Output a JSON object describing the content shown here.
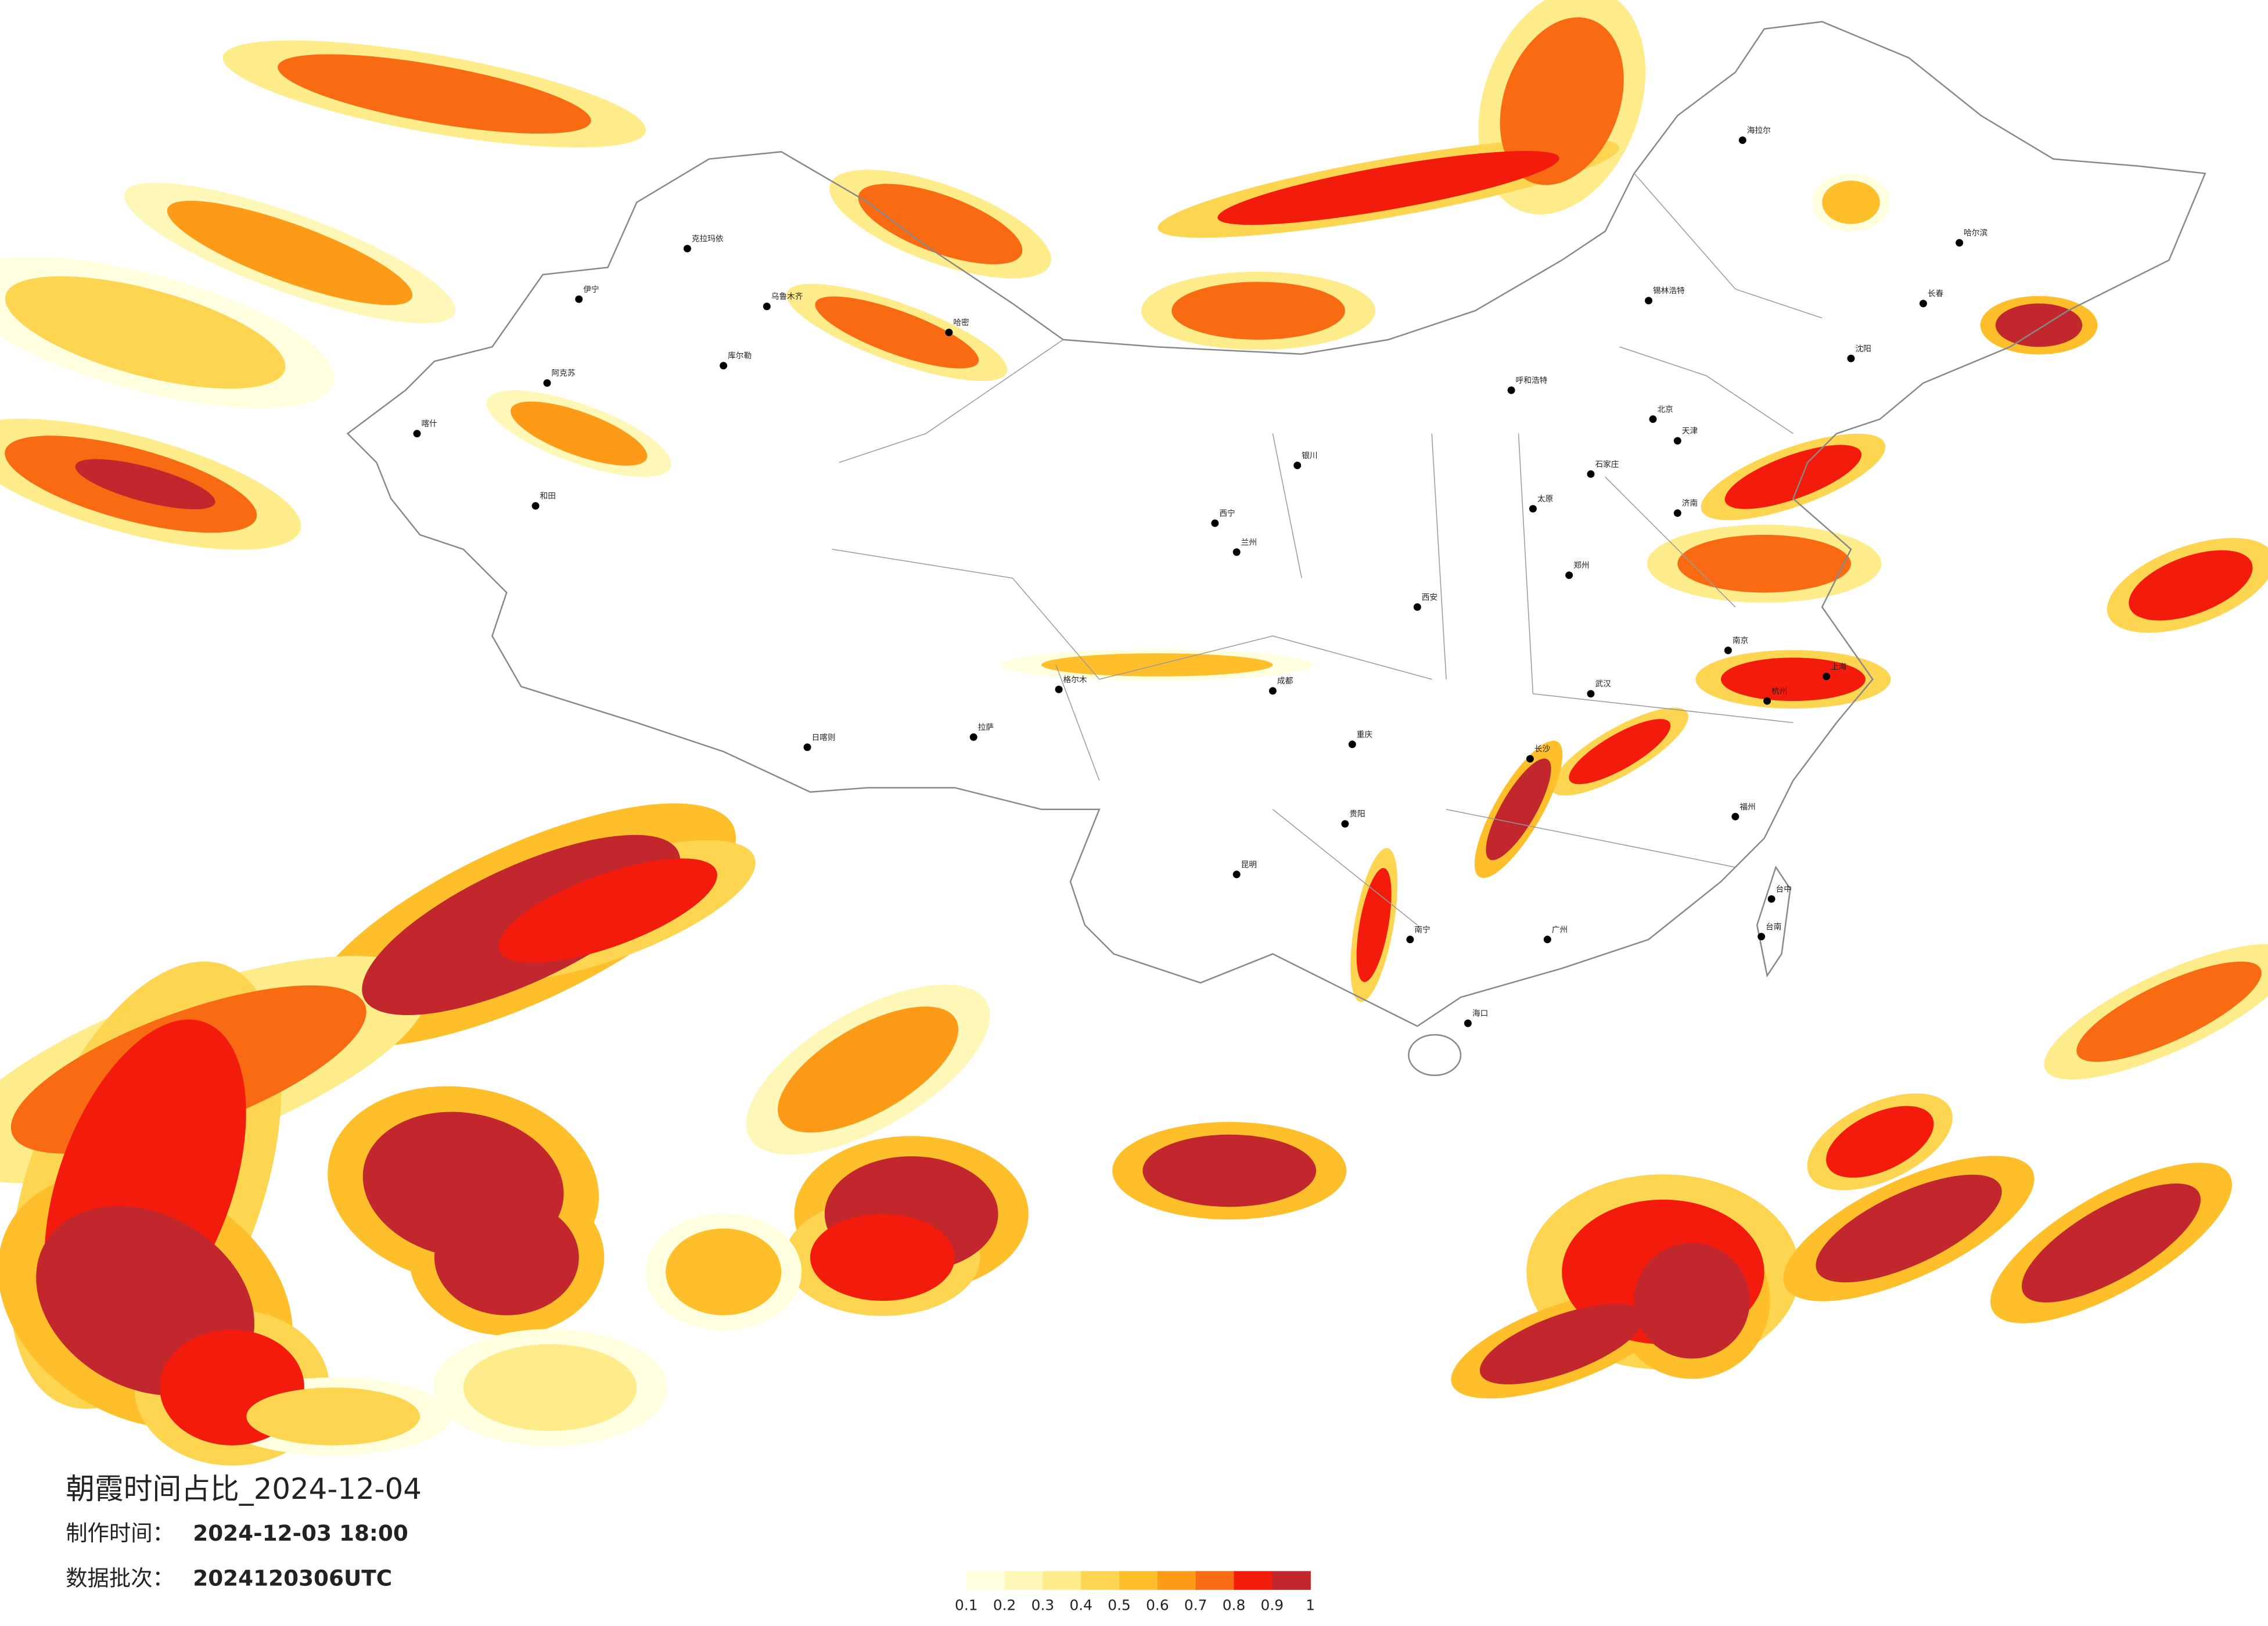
{
  "title": "朝霞时间占比_2024-12-04",
  "made_label": "制作时间：",
  "made_time": "2024-12-03 18:00",
  "batch_label": "数据批次：",
  "batch": "2024120306UTC",
  "colorbar": {
    "ticks": [
      0.1,
      0.2,
      0.3,
      0.4,
      0.5,
      0.6,
      0.7,
      0.8,
      0.9,
      1
    ],
    "colors": [
      "#ffffe0",
      "#fff7b8",
      "#feeb8a",
      "#fed551",
      "#febf2a",
      "#fd9a18",
      "#f86b12",
      "#f21b0c",
      "#c1272d"
    ]
  },
  "cities": [
    "克拉玛依",
    "伊宁",
    "乌鲁木齐",
    "阿克苏",
    "喀什",
    "和田",
    "库尔勒",
    "哈密",
    "拉萨",
    "日喀则",
    "格尔木",
    "西宁",
    "兰州",
    "银川",
    "成都",
    "重庆",
    "昆明",
    "贵阳",
    "南宁",
    "海口",
    "广州",
    "长沙",
    "武汉",
    "郑州",
    "西安",
    "太原",
    "石家庄",
    "北京",
    "天津",
    "济南",
    "南京",
    "上海",
    "杭州",
    "福州",
    "台中",
    "台南",
    "哈尔滨",
    "长春",
    "沈阳",
    "呼和浩特",
    "锡林浩特",
    "海拉尔"
  ]
}
